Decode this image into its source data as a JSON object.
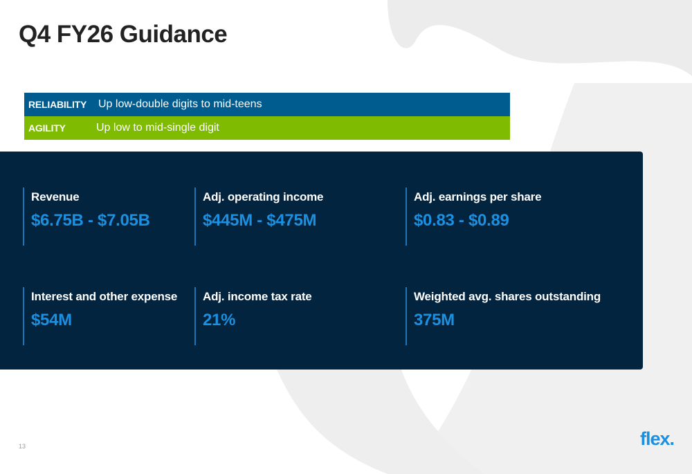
{
  "slide": {
    "title": "Q4 FY26 Guidance",
    "page_number": "13",
    "logo": "flex.",
    "logo_color": "#1b8fe0"
  },
  "segments": [
    {
      "label": "RELIABILITY",
      "text": "Up low-double digits to mid-teens",
      "color": "#005b8f"
    },
    {
      "label": "AGILITY",
      "text": "Up low to mid-single digit",
      "color": "#7fbb00"
    }
  ],
  "metrics": [
    {
      "label": "Revenue",
      "value": "$6.75B - $7.05B"
    },
    {
      "label": "Adj. operating income",
      "value": "$445M - $475M"
    },
    {
      "label": "Adj. earnings per share",
      "value": "$0.83 - $0.89"
    },
    {
      "label": "Interest and other expense",
      "value": "$54M"
    },
    {
      "label": "Adj. income tax rate",
      "value": "21%"
    },
    {
      "label": "Weighted avg. shares outstanding",
      "value": "375M"
    }
  ],
  "colors": {
    "panel_bg": "#03243f",
    "value_accent": "#1b8fe0",
    "divider": "#1b75b8"
  }
}
